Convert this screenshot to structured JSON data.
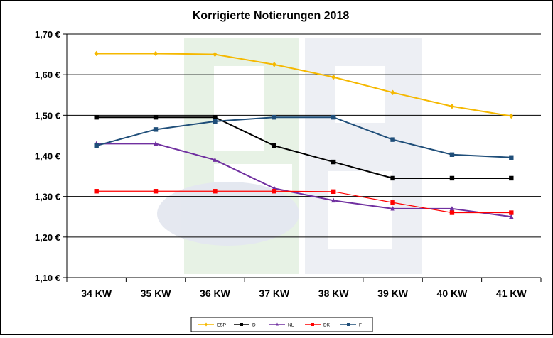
{
  "chart_data": {
    "type": "line",
    "title": "Korrigierte Notierungen 2018",
    "xlabel": "",
    "ylabel": "",
    "categories": [
      "34 KW",
      "35 KW",
      "36 KW",
      "37 KW",
      "38 KW",
      "39 KW",
      "40 KW",
      "41 KW"
    ],
    "ylim": [
      1.1,
      1.7
    ],
    "ytick_values": [
      1.1,
      1.2,
      1.3,
      1.4,
      1.5,
      1.6,
      1.7
    ],
    "ytick_labels": [
      "1,10 €",
      "1,20 €",
      "1,30 €",
      "1,40 €",
      "1,50 €",
      "1,60 €",
      "1,70 €"
    ],
    "grid": "horizontal",
    "legend_position": "bottom",
    "series": [
      {
        "name": "ESP",
        "color": "#F5B800",
        "marker": "diamond",
        "values": [
          1.652,
          1.652,
          1.65,
          1.625,
          1.594,
          1.556,
          1.522,
          1.498
        ]
      },
      {
        "name": "D",
        "color": "#000000",
        "marker": "square",
        "values": [
          1.495,
          1.495,
          1.495,
          1.425,
          1.385,
          1.345,
          1.345,
          1.345
        ]
      },
      {
        "name": "NL",
        "color": "#7030A0",
        "marker": "triangle",
        "values": [
          1.43,
          1.43,
          1.39,
          1.32,
          1.29,
          1.27,
          1.27,
          1.25
        ]
      },
      {
        "name": "DK",
        "color": "#FF0000",
        "marker": "square",
        "values": [
          1.313,
          1.313,
          1.313,
          1.313,
          1.312,
          1.285,
          1.26,
          1.26
        ]
      },
      {
        "name": "F",
        "color": "#1F4E79",
        "marker": "square",
        "values": [
          1.425,
          1.465,
          1.485,
          1.495,
          1.495,
          1.44,
          1.403,
          1.396
        ]
      }
    ]
  }
}
